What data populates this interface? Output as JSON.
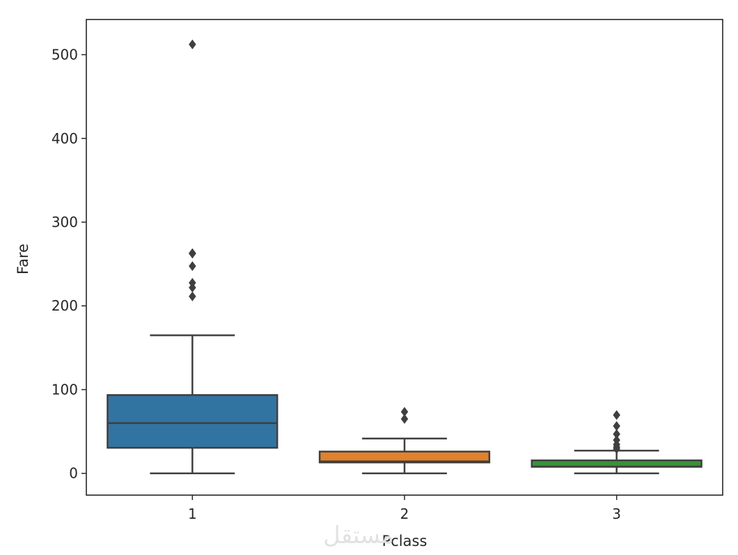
{
  "chart_data": {
    "type": "box",
    "xlabel": "Pclass",
    "ylabel": "Fare",
    "ylim": [
      -26,
      542
    ],
    "yticks": [
      0,
      100,
      200,
      300,
      400,
      500
    ],
    "grid": false,
    "legend": "none",
    "boxes": [
      {
        "category": "1",
        "color": "#3274a1",
        "whisker_low": 0,
        "q1": 30.5,
        "median": 60,
        "q3": 93.5,
        "whisker_high": 164.9,
        "outliers": [
          211.3,
          221.8,
          227.5,
          247.5,
          262.4,
          263,
          512.3
        ]
      },
      {
        "category": "2",
        "color": "#e1812c",
        "whisker_low": 0,
        "q1": 13,
        "median": 14.25,
        "q3": 26,
        "whisker_high": 41.6,
        "outliers": [
          65,
          73.5
        ]
      },
      {
        "category": "3",
        "color": "#3a923a",
        "whisker_low": 0,
        "q1": 7.75,
        "median": 8.05,
        "q3": 15.5,
        "whisker_high": 27.1,
        "outliers": [
          29.1,
          31.3,
          34.4,
          39.7,
          46.9,
          56.5,
          69.6
        ]
      }
    ]
  },
  "watermark": "مستقل"
}
